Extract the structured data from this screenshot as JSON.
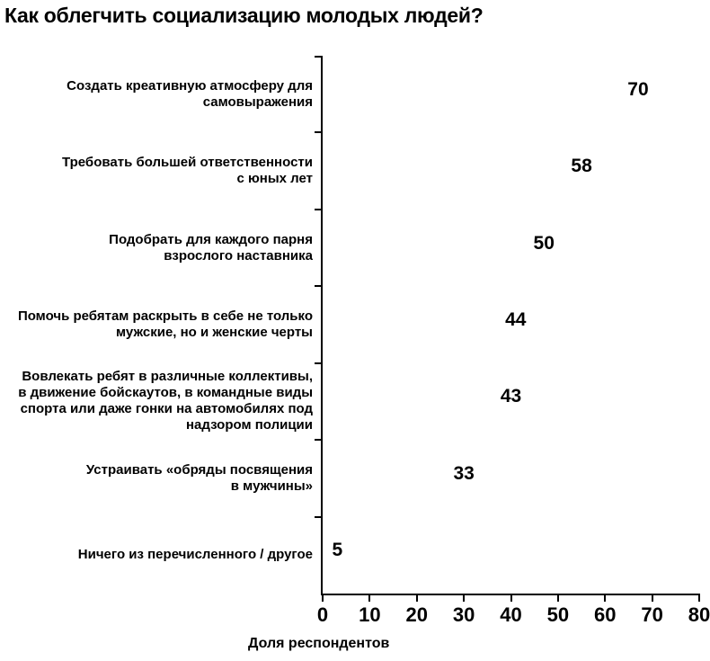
{
  "chart_data": {
    "type": "bar",
    "orientation": "horizontal",
    "title": "Как облегчить социализацию молодых людей?",
    "xlabel": "Доля респондентов",
    "xlim": [
      0,
      80
    ],
    "x_ticks": [
      0,
      10,
      20,
      30,
      40,
      50,
      60,
      70,
      80
    ],
    "grid": false,
    "bars_drawn": false,
    "value_labels_visible": true,
    "categories": [
      "Создать креативную атмосферу для самовыражения",
      "Требовать большей ответственности с юных лет",
      "Подобрать для каждого парня взрослого наставника",
      "Помочь ребятам раскрыть в себе не только мужские, но и женские черты",
      "Вовлекать ребят в различные коллективы, в движение бойскаутов, в командные виды спорта или даже гонки на автомобилях под надзором полиции",
      "Устраивать «обряды посвящения в мужчины»",
      "Ничего из перечисленного / другое"
    ],
    "category_lines": [
      [
        "Создать креативную атмосферу для",
        "самовыражения"
      ],
      [
        "Требовать большей ответственности",
        "с юных лет"
      ],
      [
        "Подобрать для каждого парня",
        "взрослого наставника"
      ],
      [
        "Помочь ребятам раскрыть в себе не только",
        "мужские, но и женские черты"
      ],
      [
        "Вовлекать ребят в различные коллективы,",
        "в движение бойскаутов, в командные виды",
        "спорта или даже гонки на автомобилях под",
        "надзором полиции"
      ],
      [
        "Устраивать «обряды посвящения",
        "в мужчины»"
      ],
      [
        "Ничего из перечисленного / другое"
      ]
    ],
    "values": [
      70,
      58,
      50,
      44,
      43,
      33,
      5
    ],
    "colors": {
      "text": "#000000",
      "axis": "#000000",
      "background": "#ffffff"
    }
  }
}
